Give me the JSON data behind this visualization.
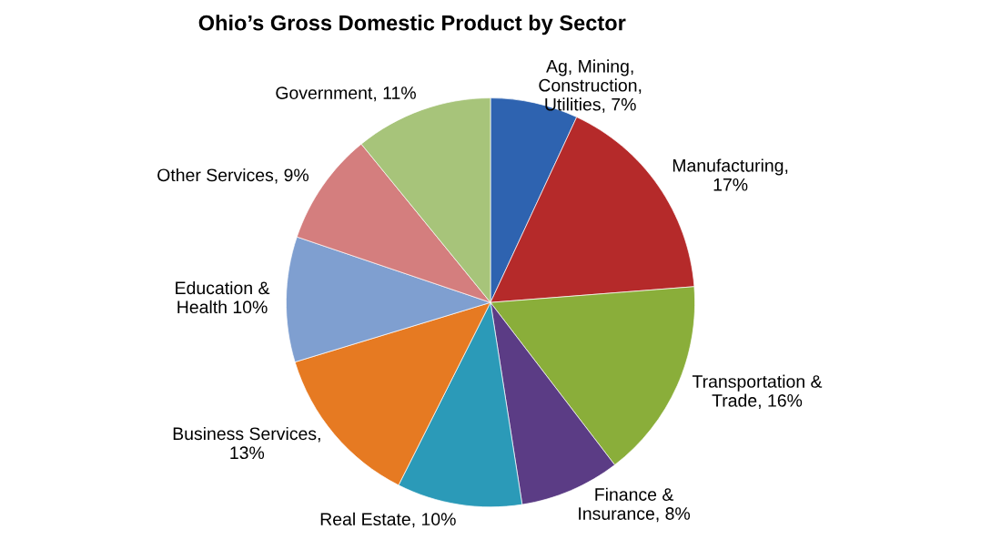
{
  "chart_data": {
    "type": "pie",
    "title": "Ohio’s Gross Domestic Product by Sector",
    "categories": [
      "Ag, Mining,\nConstruction,\nUtilities, 7%",
      "Manufacturing,\n17%",
      "Transportation &\nTrade, 16%",
      "Finance &\nInsurance, 8%",
      "Real Estate, 10%",
      "Business Services,\n13%",
      "Education &\nHealth 10%",
      "Other Services, 9%",
      "Government, 11%"
    ],
    "values": [
      7,
      17,
      16,
      8,
      10,
      13,
      10,
      9,
      11
    ],
    "colors": [
      "#2e63b0",
      "#b52a2a",
      "#8aae3a",
      "#5b3c85",
      "#2b9ab8",
      "#e67a22",
      "#7f9fd0",
      "#d47e7e",
      "#a7c47a"
    ]
  }
}
